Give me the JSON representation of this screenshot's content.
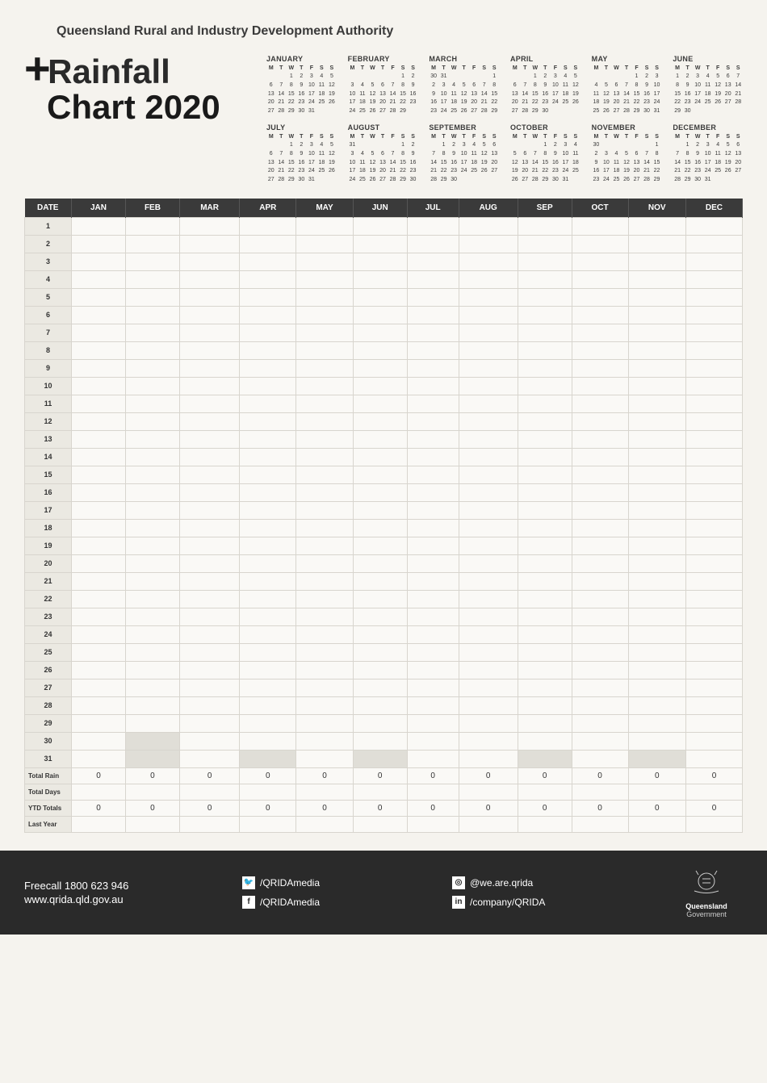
{
  "authority": "Queensland Rural and Industry Development Authority",
  "title": {
    "plus": "+",
    "line1": "Rainfall",
    "line2": "Chart 2020"
  },
  "dow": [
    "M",
    "T",
    "W",
    "T",
    "F",
    "S",
    "S"
  ],
  "calendars": [
    {
      "name": "JANUARY",
      "start": 2,
      "days": 31,
      "lead": []
    },
    {
      "name": "FEBRUARY",
      "start": 5,
      "days": 29,
      "lead": []
    },
    {
      "name": "MARCH",
      "start": 6,
      "days": 31,
      "lead": [
        "30",
        "31"
      ]
    },
    {
      "name": "APRIL",
      "start": 2,
      "days": 30,
      "lead": []
    },
    {
      "name": "MAY",
      "start": 4,
      "days": 31,
      "lead": []
    },
    {
      "name": "JUNE",
      "start": 0,
      "days": 30,
      "lead": []
    },
    {
      "name": "JULY",
      "start": 2,
      "days": 31,
      "lead": []
    },
    {
      "name": "AUGUST",
      "start": 5,
      "days": 31,
      "lead": [
        "31"
      ]
    },
    {
      "name": "SEPTEMBER",
      "start": 1,
      "days": 30,
      "lead": []
    },
    {
      "name": "OCTOBER",
      "start": 3,
      "days": 31,
      "lead": []
    },
    {
      "name": "NOVEMBER",
      "start": 6,
      "days": 30,
      "lead": [
        "30"
      ]
    },
    {
      "name": "DECEMBER",
      "start": 1,
      "days": 31,
      "lead": []
    }
  ],
  "table": {
    "headers": [
      "DATE",
      "JAN",
      "FEB",
      "MAR",
      "APR",
      "MAY",
      "JUN",
      "JUL",
      "AUG",
      "SEP",
      "OCT",
      "NOV",
      "DEC"
    ],
    "dates": [
      "1",
      "2",
      "3",
      "4",
      "5",
      "6",
      "7",
      "8",
      "9",
      "10",
      "11",
      "12",
      "13",
      "14",
      "15",
      "16",
      "17",
      "18",
      "19",
      "20",
      "21",
      "22",
      "23",
      "24",
      "25",
      "26",
      "27",
      "28",
      "29",
      "30",
      "31"
    ],
    "shaded_months_for_row": {
      "29": [],
      "30": [
        1
      ],
      "31": [
        1,
        3,
        5,
        8,
        10
      ]
    },
    "summary_rows": [
      {
        "label": "Total Rain",
        "values": [
          "0",
          "0",
          "0",
          "0",
          "0",
          "0",
          "0",
          "0",
          "0",
          "0",
          "0",
          "0"
        ]
      },
      {
        "label": "Total Days",
        "values": [
          "",
          "",
          "",
          "",
          "",
          "",
          "",
          "",
          "",
          "",
          "",
          ""
        ]
      },
      {
        "label": "YTD Totals",
        "values": [
          "0",
          "0",
          "0",
          "0",
          "0",
          "0",
          "0",
          "0",
          "0",
          "0",
          "0",
          "0"
        ]
      },
      {
        "label": "Last Year",
        "values": [
          "",
          "",
          "",
          "",
          "",
          "",
          "",
          "",
          "",
          "",
          "",
          ""
        ]
      }
    ]
  },
  "footer": {
    "phone": "Freecall 1800 623 946",
    "url": "www.qrida.qld.gov.au",
    "social": [
      {
        "icon": "twitter",
        "glyph": "🐦",
        "handle": "/QRIDAmedia"
      },
      {
        "icon": "instagram",
        "glyph": "◎",
        "handle": "@we.are.qrida"
      },
      {
        "icon": "facebook",
        "glyph": "f",
        "handle": "/QRIDAmedia"
      },
      {
        "icon": "linkedin",
        "glyph": "in",
        "handle": "/company/QRIDA"
      }
    ],
    "logo_line1": "Queensland",
    "logo_line2": "Government"
  },
  "colors": {
    "page_bg": "#f5f3ee",
    "header_bg": "#3a3a3a",
    "cell_bg": "#faf9f6",
    "datecol_bg": "#ebe9e2",
    "shaded_bg": "#e0ded7",
    "footer_bg": "#2a2a2a",
    "border": "#d8d5ce"
  }
}
